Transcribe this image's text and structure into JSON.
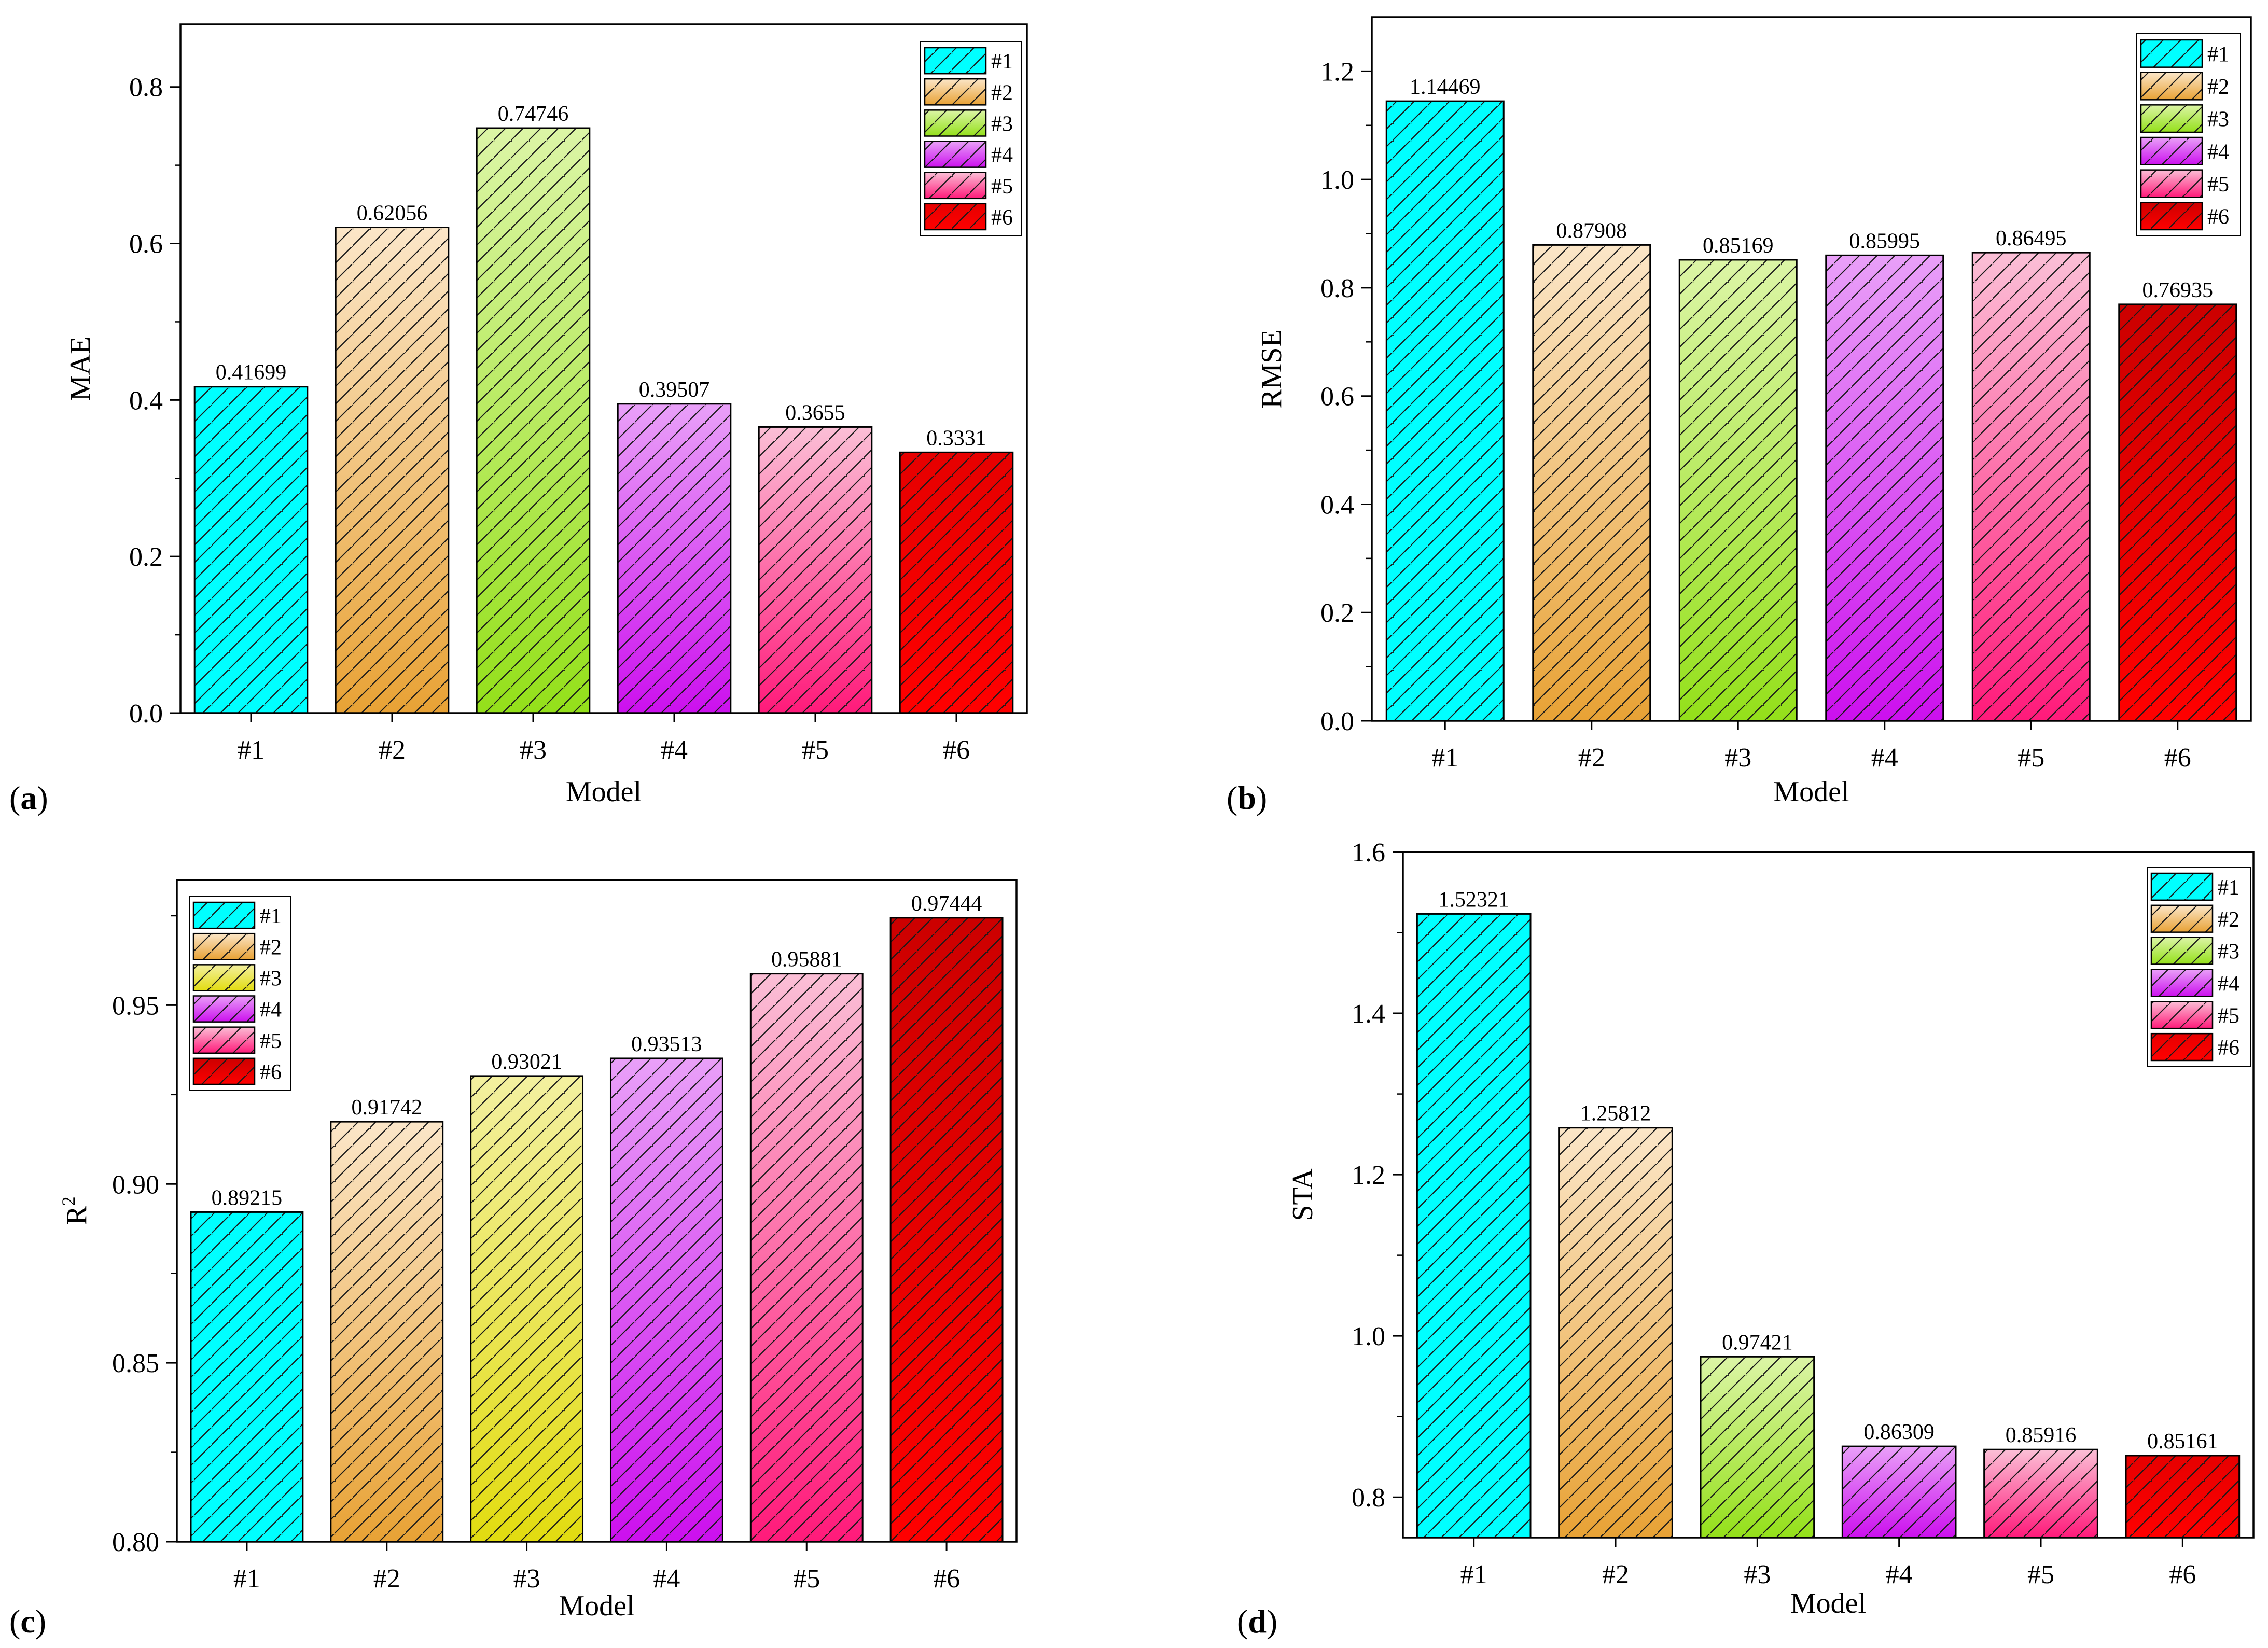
{
  "chart_data": [
    {
      "panel": "(a)",
      "type": "bar",
      "categories": [
        "#1",
        "#2",
        "#3",
        "#4",
        "#5",
        "#6"
      ],
      "values": [
        0.41699,
        0.62056,
        0.74746,
        0.39507,
        0.3655,
        0.3331
      ],
      "value_labels": [
        "0.41699",
        "0.62056",
        "0.74746",
        "0.39507",
        "0.3655",
        "0.3331"
      ],
      "xlabel": "Model",
      "ylabel": "MAE",
      "ylim": [
        0,
        0.88
      ],
      "yticks": [
        0.0,
        0.2,
        0.4,
        0.6,
        0.8
      ],
      "ytick_labels": [
        "0.0",
        "0.2",
        "0.4",
        "0.6",
        "0.8"
      ],
      "legend": [
        "#1",
        "#2",
        "#3",
        "#4",
        "#5",
        "#6"
      ],
      "legend_position": "top-right",
      "colors": [
        [
          "#00ffff",
          "#00ffff"
        ],
        [
          "#fbe6c8",
          "#e8a235"
        ],
        [
          "#dcf5a6",
          "#94e01a"
        ],
        [
          "#e9a0f8",
          "#cc10ee"
        ],
        [
          "#fbbfd6",
          "#ff1a7a"
        ],
        [
          "#e60000",
          "#ff0000"
        ]
      ]
    },
    {
      "panel": "(b)",
      "type": "bar",
      "categories": [
        "#1",
        "#2",
        "#3",
        "#4",
        "#5",
        "#6"
      ],
      "values": [
        1.14469,
        0.87908,
        0.85169,
        0.85995,
        0.86495,
        0.76935
      ],
      "value_labels": [
        "1.14469",
        "0.87908",
        "0.85169",
        "0.85995",
        "0.86495",
        "0.76935"
      ],
      "xlabel": "Model",
      "ylabel": "RMSE",
      "ylim": [
        0,
        1.3
      ],
      "yticks": [
        0.0,
        0.2,
        0.4,
        0.6,
        0.8,
        1.0,
        1.2
      ],
      "ytick_labels": [
        "0.0",
        "0.2",
        "0.4",
        "0.6",
        "0.8",
        "1.0",
        "1.2"
      ],
      "legend": [
        "#1",
        "#2",
        "#3",
        "#4",
        "#5",
        "#6"
      ],
      "legend_position": "top-right",
      "colors": [
        [
          "#00ffff",
          "#00ffff"
        ],
        [
          "#fbe6c8",
          "#e8a235"
        ],
        [
          "#dcf5a6",
          "#94e01a"
        ],
        [
          "#e9a0f8",
          "#cc10ee"
        ],
        [
          "#fbbfd6",
          "#ff1a7a"
        ],
        [
          "#cc0000",
          "#ff0000"
        ]
      ]
    },
    {
      "panel": "(c)",
      "type": "bar",
      "categories": [
        "#1",
        "#2",
        "#3",
        "#4",
        "#5",
        "#6"
      ],
      "values": [
        0.89215,
        0.91742,
        0.93021,
        0.93513,
        0.95881,
        0.97444
      ],
      "value_labels": [
        "0.89215",
        "0.91742",
        "0.93021",
        "0.93513",
        "0.95881",
        "0.97444"
      ],
      "xlabel": "Model",
      "ylabel": "R",
      "ylabel_sup": "2",
      "ylim": [
        0.8,
        0.985
      ],
      "yticks": [
        0.8,
        0.85,
        0.9,
        0.95
      ],
      "ytick_labels": [
        "0.80",
        "0.85",
        "0.90",
        "0.95"
      ],
      "legend": [
        "#1",
        "#2",
        "#3",
        "#4",
        "#5",
        "#6"
      ],
      "legend_position": "top-left",
      "colors": [
        [
          "#00ffff",
          "#00ffff"
        ],
        [
          "#fbe6c8",
          "#e8a235"
        ],
        [
          "#f3f0a0",
          "#e2dc10"
        ],
        [
          "#e9a0f8",
          "#cc10ee"
        ],
        [
          "#fbbfd6",
          "#ff1a7a"
        ],
        [
          "#cc0000",
          "#ff0000"
        ]
      ]
    },
    {
      "panel": "(d)",
      "type": "bar",
      "categories": [
        "#1",
        "#2",
        "#3",
        "#4",
        "#5",
        "#6"
      ],
      "values": [
        1.52321,
        1.25812,
        0.97421,
        0.86309,
        0.85916,
        0.85161
      ],
      "value_labels": [
        "1.52321",
        "1.25812",
        "0.97421",
        "0.86309",
        "0.85916",
        "0.85161"
      ],
      "xlabel": "Model",
      "ylabel": "STA",
      "ylim": [
        0.75,
        1.6
      ],
      "yticks": [
        0.8,
        1.0,
        1.2,
        1.4,
        1.6
      ],
      "ytick_labels": [
        "0.8",
        "1.0",
        "1.2",
        "1.4",
        "1.6"
      ],
      "legend": [
        "#1",
        "#2",
        "#3",
        "#4",
        "#5",
        "#6"
      ],
      "legend_position": "top-right",
      "colors": [
        [
          "#00ffff",
          "#00ffff"
        ],
        [
          "#fbe6c8",
          "#e8a235"
        ],
        [
          "#dcf5a6",
          "#94e01a"
        ],
        [
          "#e9a0f8",
          "#cc10ee"
        ],
        [
          "#fbbfd6",
          "#ff1a7a"
        ],
        [
          "#e60000",
          "#ff0000"
        ]
      ]
    }
  ]
}
